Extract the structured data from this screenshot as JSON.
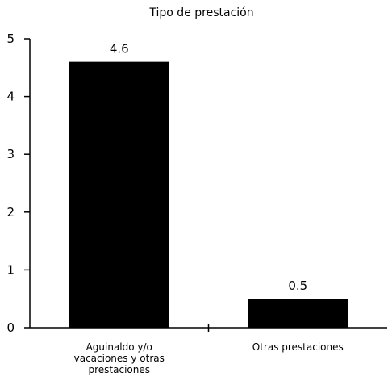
{
  "chart_data": {
    "type": "bar",
    "title": "Tipo de prestación",
    "xlabel": "",
    "ylabel": "",
    "categories": [
      [
        "Aguinaldo y/o",
        "vacaciones y otras",
        "prestaciones"
      ],
      [
        "Otras prestaciones"
      ]
    ],
    "values": [
      4.6,
      0.5
    ],
    "data_labels": [
      "4.6",
      "0.5"
    ],
    "ylim": [
      0,
      5
    ],
    "yticks": [
      0,
      1,
      2,
      3,
      4,
      5
    ],
    "ytick_labels": [
      "0",
      "1",
      "2",
      "3",
      "4",
      "5"
    ],
    "grid": false,
    "legend": "none",
    "colors": {
      "bar": "#000000",
      "axis": "#000000",
      "background": "#ffffff"
    }
  }
}
